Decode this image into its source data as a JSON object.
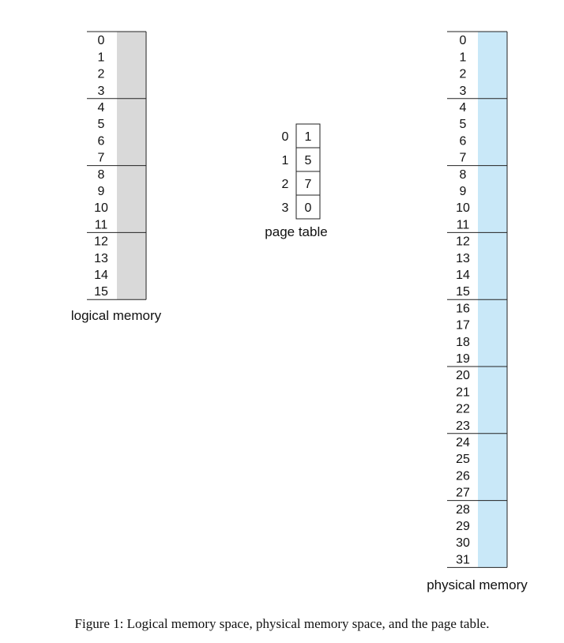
{
  "diagram": {
    "colors": {
      "logical_fill": "#d9d9d9",
      "physical_fill": "#c9e8f8",
      "line": "#222222"
    },
    "logical_memory": {
      "label": "logical memory",
      "addresses": [
        "0",
        "1",
        "2",
        "3",
        "4",
        "5",
        "6",
        "7",
        "8",
        "9",
        "10",
        "11",
        "12",
        "13",
        "14",
        "15"
      ],
      "page_size": 4
    },
    "page_table": {
      "label": "page table",
      "indices": [
        "0",
        "1",
        "2",
        "3"
      ],
      "frames": [
        "1",
        "5",
        "7",
        "0"
      ]
    },
    "physical_memory": {
      "label": "physical memory",
      "addresses": [
        "0",
        "1",
        "2",
        "3",
        "4",
        "5",
        "6",
        "7",
        "8",
        "9",
        "10",
        "11",
        "12",
        "13",
        "14",
        "15",
        "16",
        "17",
        "18",
        "19",
        "20",
        "21",
        "22",
        "23",
        "24",
        "25",
        "26",
        "27",
        "28",
        "29",
        "30",
        "31"
      ],
      "frame_size": 4
    }
  },
  "caption": "Figure 1: Logical memory space, physical memory space, and the page table."
}
